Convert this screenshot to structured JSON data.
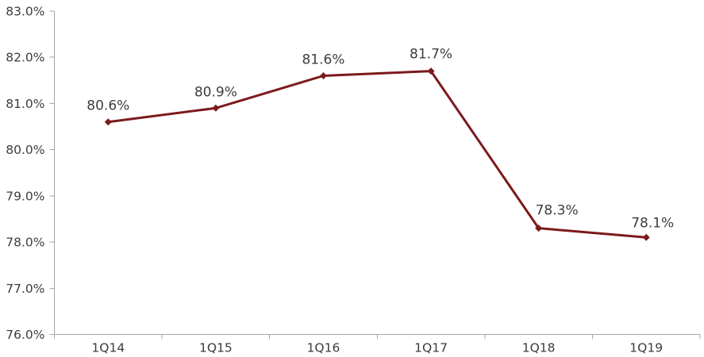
{
  "chart_data": {
    "type": "line",
    "categories": [
      "1Q14",
      "1Q15",
      "1Q16",
      "1Q17",
      "1Q18",
      "1Q19"
    ],
    "values": [
      80.6,
      80.9,
      81.6,
      81.7,
      78.3,
      78.1
    ],
    "data_labels": [
      "80.6%",
      "80.9%",
      "81.6%",
      "81.7%",
      "78.3%",
      "78.1%"
    ],
    "title": "",
    "xlabel": "",
    "ylabel": "",
    "ylim": [
      76,
      83
    ],
    "y_tick_values": [
      76,
      77,
      78,
      79,
      80,
      81,
      82,
      83
    ],
    "y_tick_labels": [
      "76.0%",
      "77.0%",
      "78.0%",
      "79.0%",
      "80.0%",
      "81.0%",
      "82.0%",
      "83.0%"
    ],
    "grid": false,
    "legend": "none",
    "marker": "diamond",
    "line_width": 3,
    "marker_size": 4.5,
    "colors": {
      "line": "#7C1A1C",
      "marker": "#7C1A1C",
      "axis": "#A6A6A6",
      "text": "#3D3D3D"
    },
    "label_offsets": {
      "dx": [
        0,
        0,
        0,
        0,
        23,
        8
      ],
      "dy": [
        -15,
        -15,
        -15,
        -16,
        -17,
        -13
      ]
    }
  }
}
